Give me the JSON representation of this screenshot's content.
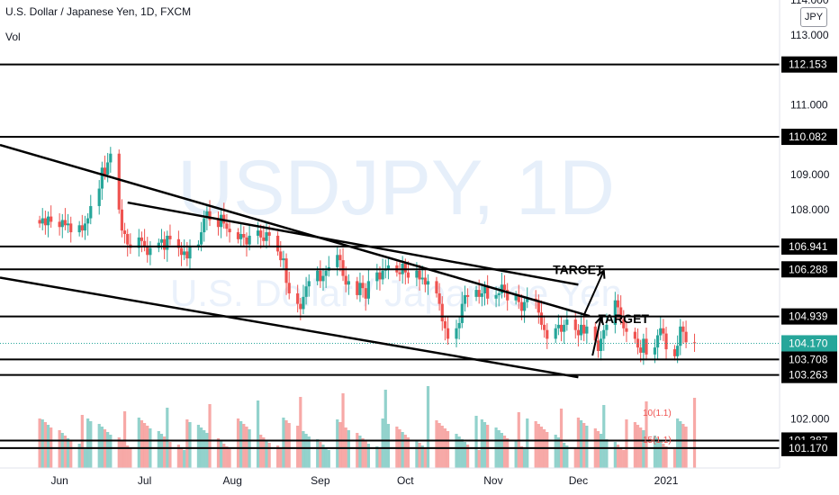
{
  "header": {
    "title": "U.S. Dollar / Japanese Yen, 1D, FXCM",
    "indicator": "Vol",
    "currency_button": "JPY"
  },
  "watermark": {
    "symbol": "USDJPY, 1D",
    "name": "U.S. Dollar / Japanese Yen"
  },
  "colors": {
    "up": "#26a69a",
    "down": "#ef5350",
    "line": "#000000",
    "current_price": "#26a69a"
  },
  "chart_data": {
    "type": "candlestick",
    "ylim": [
      100.6,
      114.0
    ],
    "y_ticks": [
      114.0,
      113.0,
      111.0,
      109.0,
      108.0,
      102.0
    ],
    "y_tick_labels": [
      "114.000",
      "113.000",
      "111.000",
      "109.000",
      "108.000",
      "102.000"
    ],
    "x_tick_labels": [
      "Jun",
      "Jul",
      "Aug",
      "Sep",
      "Oct",
      "Nov",
      "Dec",
      "2021"
    ],
    "x_tick_dates": [
      "2020-06-01",
      "2020-07-01",
      "2020-08-01",
      "2020-09-01",
      "2020-10-01",
      "2020-11-01",
      "2020-12-01",
      "2021-01-01"
    ],
    "date_range": [
      "2020-05-11",
      "2021-02-10"
    ],
    "current_price": 104.17,
    "current_price_label": "104.170",
    "horizontal_levels": [
      {
        "value": 112.153,
        "label": "112.153"
      },
      {
        "value": 110.082,
        "label": "110.082"
      },
      {
        "value": 106.941,
        "label": "106.941"
      },
      {
        "value": 106.288,
        "label": "106.288"
      },
      {
        "value": 104.939,
        "label": "104.939"
      },
      {
        "value": 103.708,
        "label": "103.708"
      },
      {
        "value": 103.263,
        "label": "103.263"
      },
      {
        "value": 101.387,
        "label": "101.387"
      },
      {
        "value": 101.17,
        "label": "101.170"
      }
    ],
    "trend_lines": [
      {
        "from": [
          "2020-05-11",
          109.85
        ],
        "to": [
          "2020-12-05",
          104.95
        ]
      },
      {
        "from": [
          "2020-06-25",
          108.2
        ],
        "to": [
          "2020-12-01",
          105.85
        ]
      },
      {
        "from": [
          "2020-05-11",
          106.05
        ],
        "to": [
          "2020-12-01",
          103.2
        ]
      }
    ],
    "annotations": [
      {
        "text": "TARGET",
        "at": [
          "2020-11-22",
          106.15
        ]
      },
      {
        "text": "TARGET",
        "at": [
          "2020-12-08",
          104.75
        ]
      }
    ],
    "arrows": [
      {
        "from": [
          "2020-12-03",
          104.98
        ],
        "to": [
          "2020-12-10",
          106.25
        ]
      },
      {
        "from": [
          "2020-12-06",
          103.82
        ],
        "to": [
          "2020-12-09",
          104.92
        ]
      }
    ],
    "volume_labels": [
      "10(1.1)",
      "15(1.1)"
    ],
    "ohlc_closes": [
      107.6,
      107.75,
      107.55,
      107.8,
      107.65,
      107.5,
      107.7,
      107.55,
      107.6,
      107.35,
      107.55,
      107.4,
      107.6,
      107.75,
      108.1,
      108.6,
      109.2,
      109.0,
      109.35,
      109.6,
      108.0,
      107.4,
      107.3,
      107.0,
      106.9,
      107.2,
      107.1,
      106.95,
      106.7,
      106.9,
      107.05,
      107.15,
      106.85,
      107.25,
      107.15,
      106.9,
      106.7,
      106.8,
      106.6,
      106.95,
      107.0,
      107.35,
      107.75,
      107.95,
      107.7,
      107.5,
      107.85,
      107.6,
      107.45,
      107.35,
      107.15,
      107.3,
      107.2,
      107.0,
      107.25,
      107.4,
      107.2,
      107.1,
      107.35,
      107.25,
      106.8,
      106.55,
      106.6,
      105.9,
      105.6,
      105.3,
      105.15,
      105.5,
      105.8,
      105.95,
      106.25,
      105.95,
      106.1,
      106.25,
      106.35,
      106.7,
      106.55,
      106.1,
      105.85,
      105.95,
      105.55,
      105.9,
      105.75,
      105.45,
      105.95,
      106.2,
      106.0,
      106.25,
      106.3,
      106.4,
      106.2,
      106.15,
      106.45,
      106.2,
      106.05,
      106.25,
      106.0,
      106.05,
      105.85,
      105.95,
      105.6,
      105.3,
      104.8,
      104.6,
      104.3,
      104.6,
      104.75,
      105.3,
      105.55,
      105.5,
      105.7,
      105.5,
      105.6,
      105.8,
      105.45,
      105.55,
      105.6,
      105.85,
      105.7,
      105.4,
      105.55,
      105.35,
      105.1,
      105.35,
      105.45,
      105.4,
      105.05,
      104.7,
      104.55,
      104.3,
      104.6,
      104.7,
      104.5,
      104.7,
      104.85,
      104.55,
      104.4,
      104.7,
      104.45,
      104.65,
      104.25,
      103.95,
      104.3,
      104.55,
      104.7,
      105.4,
      105.2,
      104.85,
      104.6,
      104.5,
      104.3,
      104.05,
      103.9,
      104.3,
      103.85,
      104.05,
      104.4,
      104.6,
      104.45,
      104.0,
      103.8,
      104.1,
      104.65,
      104.5,
      104.2,
      104.17
    ]
  }
}
